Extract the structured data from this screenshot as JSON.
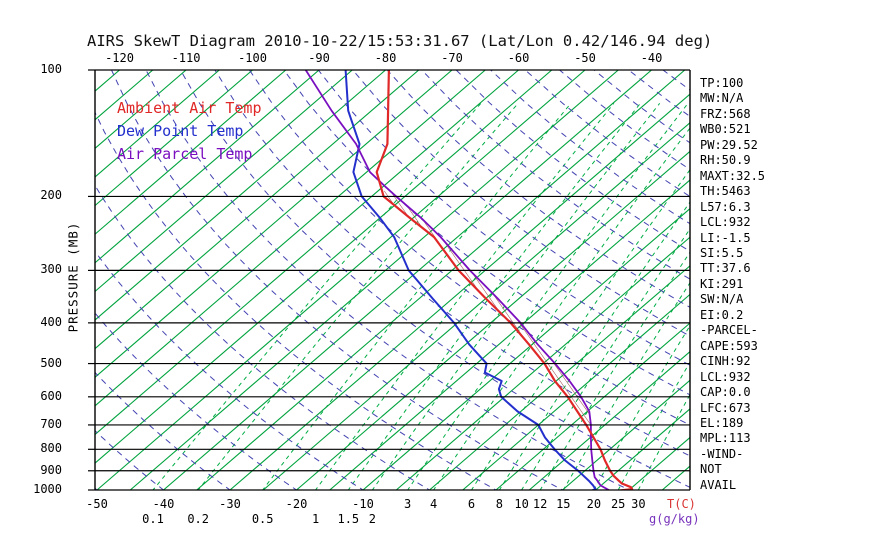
{
  "title": "AIRS SkewT Diagram 2010-10-22/15:53:31.67 (Lat/Lon 0.42/146.94 deg)",
  "legend": [
    {
      "label": "Ambient Air Temp",
      "color": "#e02828"
    },
    {
      "label": "Dew Point Temp",
      "color": "#2430cc"
    },
    {
      "label": "Air Parcel Temp",
      "color": "#7a0fc0"
    }
  ],
  "axes": {
    "y_label": "PRESSURE (MB)",
    "pressure_ticks": [
      100,
      200,
      300,
      400,
      500,
      600,
      700,
      800,
      900,
      1000
    ],
    "top_temp_ticks": [
      -120,
      -110,
      -100,
      -90,
      -80,
      -70,
      -60,
      -50,
      -40
    ],
    "bottom_temp_ticks": [
      -50,
      -40,
      -30,
      -20,
      -10
    ],
    "mixing_ticks_upper": [
      3,
      4,
      6,
      8,
      10,
      12,
      15,
      20,
      25,
      30
    ],
    "mixing_ticks_lower": [
      0.1,
      0.2,
      0.5,
      1,
      1.5,
      2
    ],
    "x_label": "T(C)",
    "mixing_label": "g(g/kg)"
  },
  "info_panel": [
    "TP:100",
    "MW:N/A",
    "FRZ:568",
    "WB0:521",
    "PW:29.52",
    "RH:50.9",
    "MAXT:32.5",
    "TH:5463",
    "L57:6.3",
    "LCL:932",
    "LI:-1.5",
    "SI:5.5",
    "TT:37.6",
    "KI:291",
    "SW:N/A",
    "EI:0.2",
    "-PARCEL-",
    "CAPE:593",
    "CINH:92",
    "LCL:932",
    "CAP:0.0",
    "LFC:673",
    "EL:189",
    "MPL:113",
    "-WIND-",
    "NOT",
    "AVAIL"
  ],
  "colors": {
    "isotherm_green": "#00a33e",
    "mixing_green": "#00ad46",
    "adiabat_blue": "#4343b2",
    "grid_black": "#000000",
    "label_red": "#d93535",
    "label_purple": "#7733bb",
    "hatch": "#9a4040"
  },
  "chart_data": {
    "type": "line",
    "title": "AIRS SkewT Diagram 2010-10-22/15:53:31.67 (Lat/Lon 0.42/146.94 deg)",
    "ylabel": "PRESSURE (MB)",
    "xlabel": "T(C)",
    "y_scale": "log",
    "y_range_mb": [
      100,
      1000
    ],
    "surface_temp_range_c": [
      -50,
      40
    ],
    "skewed": true,
    "grid": "on",
    "isotherm_step_c": 5,
    "dry_adiabat_step_c": 10,
    "mixing_ratio_lines_g_per_kg": [
      0.1,
      0.2,
      0.5,
      1,
      1.5,
      2,
      3,
      4,
      6,
      8,
      10,
      12,
      15,
      20,
      25,
      30
    ],
    "cape_hatch_pressure_range_mb": [
      194,
      710
    ],
    "series": [
      {
        "name": "Ambient Air Temp",
        "color": "#e02828",
        "points_p_t": [
          [
            1008,
            27.5
          ],
          [
            995,
            30.3
          ],
          [
            985,
            29.8
          ],
          [
            965,
            27.8
          ],
          [
            950,
            26.8
          ],
          [
            925,
            25.2
          ],
          [
            900,
            23.8
          ],
          [
            850,
            21.2
          ],
          [
            800,
            18.6
          ],
          [
            750,
            15.5
          ],
          [
            700,
            12.2
          ],
          [
            650,
            8.5
          ],
          [
            600,
            4.5
          ],
          [
            550,
            -0.2
          ],
          [
            500,
            -4.8
          ],
          [
            450,
            -10.5
          ],
          [
            400,
            -17.0
          ],
          [
            350,
            -25.0
          ],
          [
            300,
            -34.0
          ],
          [
            250,
            -43.5
          ],
          [
            225,
            -50.5
          ],
          [
            200,
            -58.2
          ],
          [
            175,
            -63.5
          ],
          [
            150,
            -66.8
          ],
          [
            125,
            -72.5
          ],
          [
            100,
            -79.5
          ]
        ]
      },
      {
        "name": "Dew Point Temp",
        "color": "#2430cc",
        "points_p_t": [
          [
            1008,
            24.3
          ],
          [
            995,
            24.8
          ],
          [
            975,
            23.8
          ],
          [
            950,
            22.3
          ],
          [
            900,
            19.0
          ],
          [
            850,
            15.2
          ],
          [
            800,
            11.7
          ],
          [
            750,
            8.2
          ],
          [
            700,
            5.0
          ],
          [
            650,
            -0.5
          ],
          [
            600,
            -5.5
          ],
          [
            575,
            -7.2
          ],
          [
            550,
            -8.2
          ],
          [
            525,
            -12.2
          ],
          [
            500,
            -13.5
          ],
          [
            450,
            -19.5
          ],
          [
            400,
            -25.5
          ],
          [
            350,
            -33.0
          ],
          [
            300,
            -41.5
          ],
          [
            250,
            -49.5
          ],
          [
            225,
            -55.0
          ],
          [
            200,
            -61.5
          ],
          [
            175,
            -67.0
          ],
          [
            150,
            -71.0
          ],
          [
            125,
            -78.5
          ],
          [
            100,
            -86.0
          ]
        ]
      },
      {
        "name": "Air Parcel Temp",
        "color": "#7a0fc0",
        "points_p_t": [
          [
            1008,
            27.6
          ],
          [
            975,
            24.9
          ],
          [
            950,
            23.6
          ],
          [
            932,
            22.6
          ],
          [
            900,
            21.3
          ],
          [
            850,
            19.3
          ],
          [
            800,
            17.2
          ],
          [
            750,
            15.1
          ],
          [
            700,
            12.9
          ],
          [
            650,
            10.3
          ],
          [
            600,
            6.5
          ],
          [
            550,
            2.0
          ],
          [
            500,
            -3.2
          ],
          [
            450,
            -9.2
          ],
          [
            400,
            -15.5
          ],
          [
            350,
            -23.2
          ],
          [
            300,
            -32.3
          ],
          [
            250,
            -42.5
          ],
          [
            225,
            -48.8
          ],
          [
            200,
            -56.3
          ],
          [
            190,
            -59.5
          ],
          [
            175,
            -64.5
          ],
          [
            150,
            -71.5
          ],
          [
            125,
            -81.0
          ],
          [
            100,
            -92.0
          ]
        ]
      }
    ]
  }
}
